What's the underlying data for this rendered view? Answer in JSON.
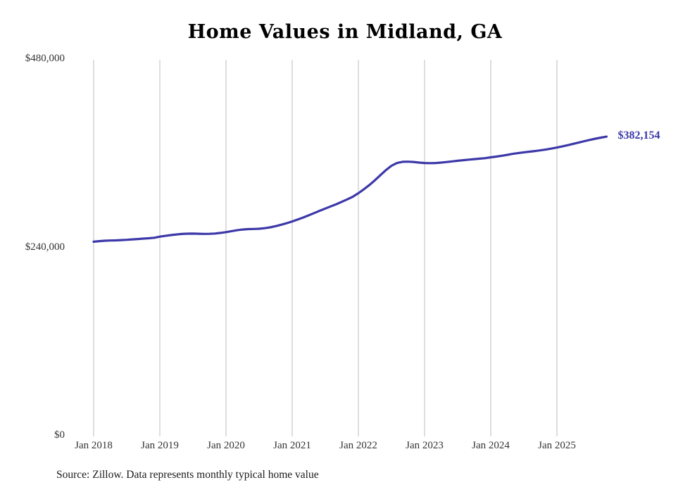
{
  "chart": {
    "title": "Home Values in Midland, GA",
    "end_label": "$382,154",
    "source_note": "Source: Zillow. Data represents monthly typical home value",
    "line_color": "#3c38a8",
    "grid_color": "#cccccc"
  },
  "chart_data": {
    "type": "line",
    "title": "Home Values in Midland, GA",
    "xlabel": "",
    "ylabel": "",
    "ylim": [
      0,
      480000
    ],
    "grid": "vertical-only",
    "legend_position": "none",
    "annotation": "$382,154",
    "final_value": 382154,
    "y_tick_values": [
      0,
      240000,
      480000
    ],
    "y_tick_labels": [
      "$0",
      "$240,000",
      "$480,000"
    ],
    "x_tick_labels": [
      "Jan 2018",
      "Jan 2019",
      "Jan 2020",
      "Jan 2021",
      "Jan 2022",
      "Jan 2023",
      "Jan 2024",
      "Jan 2025"
    ],
    "x_start_month": "2018-01",
    "x_end_month": "2025-10",
    "series": [
      {
        "name": "Monthly typical home value",
        "color": "#3c38a8",
        "values": [
          248200,
          248900,
          249400,
          249700,
          249900,
          250200,
          250600,
          251100,
          251600,
          252100,
          252600,
          253200,
          254600,
          255600,
          256600,
          257400,
          258000,
          258400,
          258500,
          258300,
          258100,
          258200,
          258600,
          259400,
          260400,
          261600,
          262800,
          263700,
          264200,
          264400,
          264700,
          265400,
          266500,
          268000,
          269800,
          271800,
          274000,
          276400,
          279000,
          281800,
          284700,
          287600,
          290400,
          293200,
          296000,
          299000,
          302200,
          305600,
          310000,
          315000,
          320500,
          326500,
          333000,
          339500,
          345000,
          348500,
          350000,
          350200,
          349800,
          349000,
          348500,
          348300,
          348500,
          349000,
          349700,
          350500,
          351300,
          352100,
          352800,
          353400,
          354000,
          354700,
          355700,
          356600,
          357700,
          358900,
          360100,
          361200,
          362100,
          362900,
          363700,
          364600,
          365700,
          366900,
          368200,
          369700,
          371300,
          373000,
          374700,
          376400,
          378000,
          379500,
          380900,
          382154
        ]
      }
    ]
  }
}
